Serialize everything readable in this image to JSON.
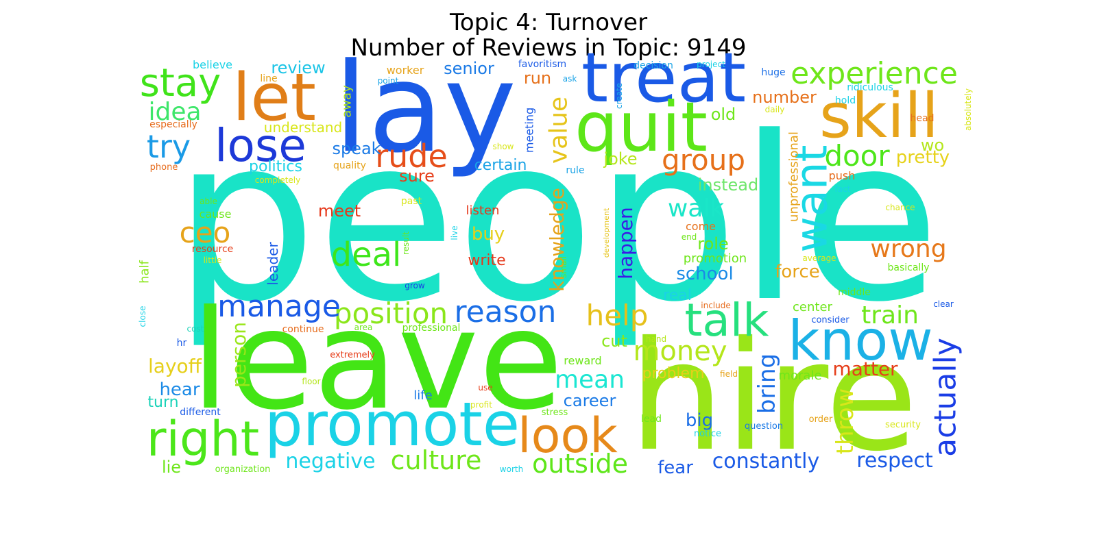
{
  "title": "Topic 4: Turnover",
  "subtitle": "Number of Reviews in Topic: 9149",
  "words": [
    {
      "text": "people",
      "color": "#19e3c7"
    },
    {
      "text": "leave",
      "color": "#43e515"
    },
    {
      "text": "hire",
      "color": "#9ae518"
    },
    {
      "text": "lay",
      "color": "#1a5ae6"
    },
    {
      "text": "treat",
      "color": "#1a5ae6"
    },
    {
      "text": "quit",
      "color": "#5de618"
    },
    {
      "text": "skill",
      "color": "#e6a31a"
    },
    {
      "text": "let",
      "color": "#e07e18"
    },
    {
      "text": "lose",
      "color": "#1d39d8"
    },
    {
      "text": "stay",
      "color": "#40e31a"
    },
    {
      "text": "promote",
      "color": "#1ad2e6"
    },
    {
      "text": "know",
      "color": "#1bb1e6"
    },
    {
      "text": "talk",
      "color": "#26e07e"
    },
    {
      "text": "look",
      "color": "#e6891a"
    },
    {
      "text": "right",
      "color": "#4ce61a"
    },
    {
      "text": "want",
      "color": "#1ad8e4"
    },
    {
      "text": "experience",
      "color": "#6ee61a"
    },
    {
      "text": "deal",
      "color": "#3ee61a"
    },
    {
      "text": "reason",
      "color": "#1a6ee6"
    },
    {
      "text": "position",
      "color": "#8ae61a"
    },
    {
      "text": "manage",
      "color": "#1a5ae6"
    },
    {
      "text": "group",
      "color": "#e6701a"
    },
    {
      "text": "door",
      "color": "#4ee61a"
    },
    {
      "text": "rude",
      "color": "#e64e1a"
    },
    {
      "text": "actually",
      "color": "#1a3de6"
    },
    {
      "text": "try",
      "color": "#1a9ae6"
    },
    {
      "text": "idea",
      "color": "#3ee66a"
    },
    {
      "text": "ceo",
      "color": "#e6a31a"
    },
    {
      "text": "wrong",
      "color": "#e6781a"
    },
    {
      "text": "value",
      "color": "#e6c41a"
    },
    {
      "text": "help",
      "color": "#e6c01a"
    },
    {
      "text": "money",
      "color": "#b4e61a"
    },
    {
      "text": "culture",
      "color": "#6ee61a"
    },
    {
      "text": "outside",
      "color": "#5ee61a"
    },
    {
      "text": "mean",
      "color": "#1ae6d2"
    },
    {
      "text": "train",
      "color": "#6ee61a"
    },
    {
      "text": "walk",
      "color": "#1ae6c8"
    },
    {
      "text": "throw",
      "color": "#d8e61a"
    },
    {
      "text": "bring",
      "color": "#1a6ee6"
    },
    {
      "text": "respect",
      "color": "#1a5ae6"
    },
    {
      "text": "constantly",
      "color": "#1a5ae6"
    },
    {
      "text": "negative",
      "color": "#1ad2e6"
    },
    {
      "text": "happen",
      "color": "#3a1ae6"
    },
    {
      "text": "knowledge",
      "color": "#e6a31a"
    },
    {
      "text": "person",
      "color": "#9ae61a"
    },
    {
      "text": "matter",
      "color": "#e63e1a"
    },
    {
      "text": "layoff",
      "color": "#e6cf1a"
    },
    {
      "text": "review",
      "color": "#1ac4e6"
    },
    {
      "text": "senior",
      "color": "#1a7ae6"
    },
    {
      "text": "number",
      "color": "#e6701a"
    },
    {
      "text": "speak",
      "color": "#1a7ae6"
    },
    {
      "text": "old",
      "color": "#6ee61a"
    },
    {
      "text": "pretty",
      "color": "#e6d21a"
    },
    {
      "text": "wo",
      "color": "#b4e61a"
    },
    {
      "text": "instead",
      "color": "#6ee66a"
    },
    {
      "text": "joke",
      "color": "#b4e61a"
    },
    {
      "text": "certain",
      "color": "#1aa3e6"
    },
    {
      "text": "politics",
      "color": "#1ad2e6"
    },
    {
      "text": "sure",
      "color": "#e63e1a"
    },
    {
      "text": "meet",
      "color": "#e6381a"
    },
    {
      "text": "buy",
      "color": "#e6cf1a"
    },
    {
      "text": "write",
      "color": "#e6381a"
    },
    {
      "text": "role",
      "color": "#6ee61a"
    },
    {
      "text": "school",
      "color": "#1a8ae6"
    },
    {
      "text": "force",
      "color": "#e6a31a"
    },
    {
      "text": "real",
      "color": "#1ad2e6"
    },
    {
      "text": "cut",
      "color": "#8ae61a"
    },
    {
      "text": "problem",
      "color": "#e6cf1a"
    },
    {
      "text": "career",
      "color": "#1a7ae6"
    },
    {
      "text": "big",
      "color": "#1a6ee6"
    },
    {
      "text": "fear",
      "color": "#1a5ae6"
    },
    {
      "text": "hear",
      "color": "#1a8ae6"
    },
    {
      "text": "turn",
      "color": "#1ad2b8"
    },
    {
      "text": "lie",
      "color": "#6ee61a"
    },
    {
      "text": "run",
      "color": "#e6701a"
    },
    {
      "text": "understand",
      "color": "#d8e61a"
    },
    {
      "text": "leader",
      "color": "#1a5ae6"
    },
    {
      "text": "half",
      "color": "#8ae61a"
    },
    {
      "text": "unprofessional",
      "color": "#e6a31a"
    },
    {
      "text": "promotion",
      "color": "#6ee61a"
    },
    {
      "text": "center",
      "color": "#6ee61a"
    },
    {
      "text": "morale",
      "color": "#6ee61a"
    },
    {
      "text": "life",
      "color": "#1a7ae6"
    },
    {
      "text": "away",
      "color": "#b4e61a"
    },
    {
      "text": "meeting",
      "color": "#1a5ae6"
    },
    {
      "text": "push",
      "color": "#e66a1a"
    },
    {
      "text": "come",
      "color": "#e6701a"
    },
    {
      "text": "listen",
      "color": "#e6381a"
    },
    {
      "text": "cause",
      "color": "#6ee61a"
    },
    {
      "text": "believe",
      "color": "#1ad2e6"
    },
    {
      "text": "worker",
      "color": "#e6a31a"
    },
    {
      "text": "favoritism",
      "color": "#1a5ae6"
    },
    {
      "text": "decision",
      "color": "#1aa3e6"
    },
    {
      "text": "project",
      "color": "#1ad2e6"
    },
    {
      "text": "huge",
      "color": "#1a6ee6"
    },
    {
      "text": "ridiculous",
      "color": "#1ad2e6"
    },
    {
      "text": "hold",
      "color": "#1ad2e6"
    },
    {
      "text": "daily",
      "color": "#d8e61a"
    },
    {
      "text": "head",
      "color": "#e6701a"
    },
    {
      "text": "absolutely",
      "color": "#d8e61a"
    },
    {
      "text": "line",
      "color": "#e6a31a"
    },
    {
      "text": "point",
      "color": "#1aa3e6"
    },
    {
      "text": "ask",
      "color": "#1aa3e6"
    },
    {
      "text": "create",
      "color": "#1aa3e6"
    },
    {
      "text": "especially",
      "color": "#e66a1a"
    },
    {
      "text": "show",
      "color": "#d8e61a"
    },
    {
      "text": "quality",
      "color": "#e6a31a"
    },
    {
      "text": "rule",
      "color": "#1aa3e6"
    },
    {
      "text": "phone",
      "color": "#e66a1a"
    },
    {
      "text": "completely",
      "color": "#d8e61a"
    },
    {
      "text": "fact",
      "color": "#1ad2e6"
    },
    {
      "text": "able",
      "color": "#6ee61a"
    },
    {
      "text": "past",
      "color": "#d8e61a"
    },
    {
      "text": "development",
      "color": "#e6c41a"
    },
    {
      "text": "chance",
      "color": "#d8e61a"
    },
    {
      "text": "resource",
      "color": "#e63e1a"
    },
    {
      "text": "little",
      "color": "#d8e61a"
    },
    {
      "text": "live",
      "color": "#1ad2e6"
    },
    {
      "text": "result",
      "color": "#6ee61a"
    },
    {
      "text": "end",
      "color": "#6ee61a"
    },
    {
      "text": "small",
      "color": "#6ee61a"
    },
    {
      "text": "average",
      "color": "#d8e61a"
    },
    {
      "text": "basically",
      "color": "#6ee61a"
    },
    {
      "text": "grow",
      "color": "#1a3de6"
    },
    {
      "text": "middle",
      "color": "#6ee61a"
    },
    {
      "text": "include",
      "color": "#e66a1a"
    },
    {
      "text": "clear",
      "color": "#1a5ae6"
    },
    {
      "text": "close",
      "color": "#1ad2e6"
    },
    {
      "text": "cost",
      "color": "#1ad2b8"
    },
    {
      "text": "continue",
      "color": "#e66a1a"
    },
    {
      "text": "area",
      "color": "#6ee61a"
    },
    {
      "text": "professional",
      "color": "#6ee61a"
    },
    {
      "text": "consider",
      "color": "#1a5ae6"
    },
    {
      "text": "hand",
      "color": "#b4e61a"
    },
    {
      "text": "hr",
      "color": "#1a5ae6"
    },
    {
      "text": "extremely",
      "color": "#e63e1a"
    },
    {
      "text": "reward",
      "color": "#6ee61a"
    },
    {
      "text": "field",
      "color": "#e6a31a"
    },
    {
      "text": "floor",
      "color": "#b4e61a"
    },
    {
      "text": "use",
      "color": "#e63e1a"
    },
    {
      "text": "different",
      "color": "#1a5ae6"
    },
    {
      "text": "profit",
      "color": "#d8e61a"
    },
    {
      "text": "stress",
      "color": "#6ee61a"
    },
    {
      "text": "lead",
      "color": "#6ee61a"
    },
    {
      "text": "notice",
      "color": "#1ad2e6"
    },
    {
      "text": "question",
      "color": "#1a7ae6"
    },
    {
      "text": "order",
      "color": "#e6a31a"
    },
    {
      "text": "security",
      "color": "#d8e61a"
    },
    {
      "text": "organization",
      "color": "#6ee61a"
    },
    {
      "text": "worth",
      "color": "#1ad2e6"
    }
  ]
}
